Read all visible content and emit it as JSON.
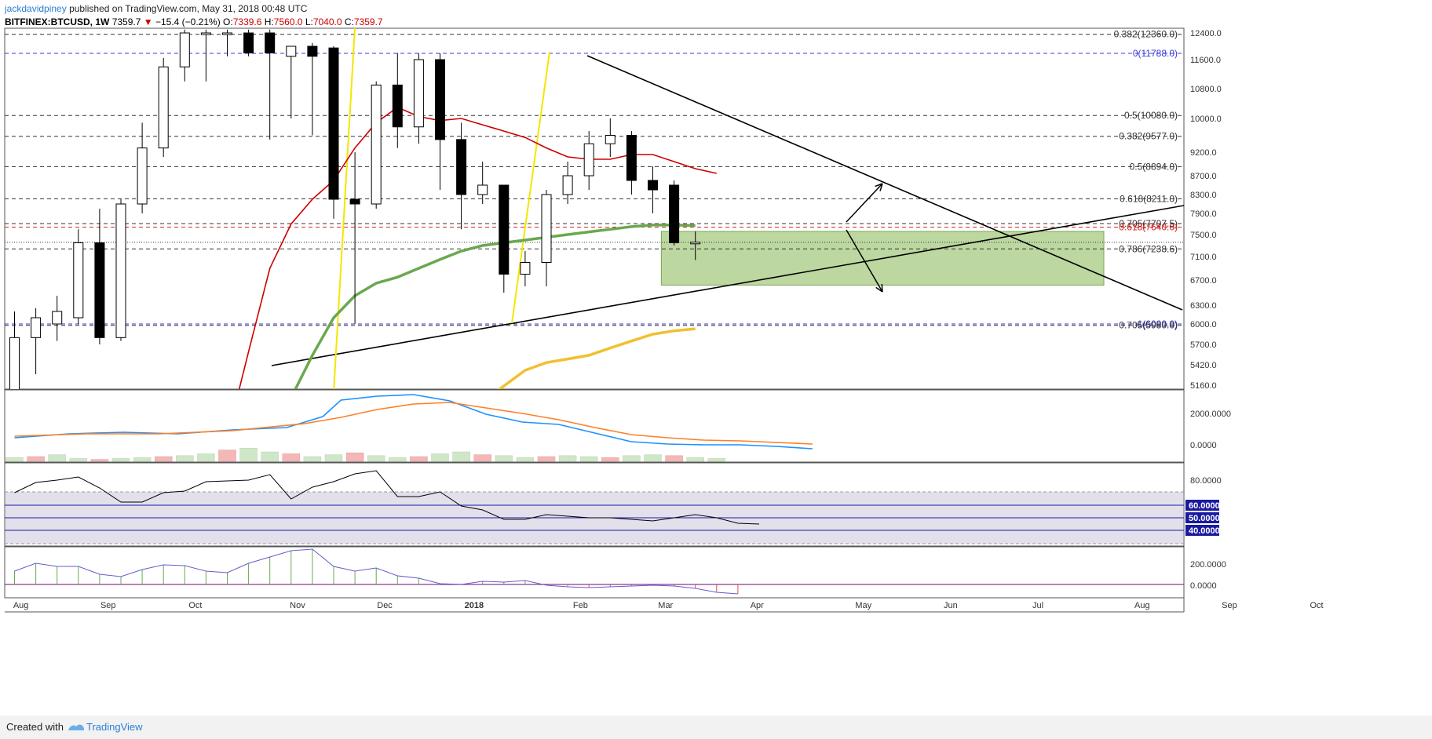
{
  "header": {
    "author": "jackdavidpiney",
    "published_text": "published on TradingView.com, May 31, 2018 00:48 UTC",
    "symbol": "BITFINEX:BTCUSD, 1W",
    "last_price": "7359.7",
    "change_arrow": "▼",
    "change": "−15.4 (−0.21%)",
    "open_label": "O:",
    "open": "7339.6",
    "high_label": "H:",
    "high": "7560.0",
    "low_label": "L:",
    "low": "7040.0",
    "close_label": "C:",
    "close": "7359.7"
  },
  "footer": {
    "created_with": "Created with",
    "brand": "TradingView"
  },
  "chart_data": {
    "type": "candlestick",
    "symbol": "BITFINEX:BTCUSD",
    "interval": "1W",
    "price_axis_ticks": [
      12400,
      11600,
      10800,
      10000,
      9200,
      8700,
      8300,
      7900,
      7500,
      7100,
      6700,
      6300,
      6000,
      5700,
      5420,
      5160
    ],
    "price_axis_labels": [
      "12400.0",
      "11600.0",
      "10800.0",
      "10000.0",
      "9200.0",
      "8700.0",
      "8300.0",
      "7900.0",
      "7500.0",
      "7100.0",
      "6700.0",
      "6300.0",
      "6000.0",
      "5700.0",
      "5420.0",
      "5160.0"
    ],
    "time_axis_labels": [
      "Aug",
      "Sep",
      "Oct",
      "Nov",
      "Dec",
      "2018",
      "Feb",
      "Mar",
      "Apr",
      "May",
      "Jun",
      "Jul",
      "Aug",
      "Sep",
      "Oct"
    ],
    "time_axis_index": [
      0.3,
      4.4,
      8.5,
      13.3,
      17.4,
      21.6,
      26.6,
      30.6,
      34.9,
      39.9,
      44.0,
      48.1,
      53.0,
      57.1,
      61.2
    ],
    "candles": [
      {
        "o": 5000,
        "h": 6200,
        "l": 4800,
        "c": 5800
      },
      {
        "o": 5800,
        "h": 6250,
        "l": 5300,
        "c": 6100
      },
      {
        "o": 6000,
        "h": 6450,
        "l": 5750,
        "c": 6200
      },
      {
        "o": 6100,
        "h": 7600,
        "l": 6000,
        "c": 7350
      },
      {
        "o": 7350,
        "h": 8000,
        "l": 5700,
        "c": 5800
      },
      {
        "o": 5800,
        "h": 8200,
        "l": 5750,
        "c": 8100
      },
      {
        "o": 8100,
        "h": 9900,
        "l": 7900,
        "c": 9300
      },
      {
        "o": 9300,
        "h": 11650,
        "l": 9100,
        "c": 11400
      },
      {
        "o": 11400,
        "h": 12500,
        "l": 11000,
        "c": 12400
      },
      {
        "o": 12400,
        "h": 12500,
        "l": 11000,
        "c": 12400
      },
      {
        "o": 12400,
        "h": 12500,
        "l": 11700,
        "c": 12400
      },
      {
        "o": 12400,
        "h": 12500,
        "l": 11700,
        "c": 11800
      },
      {
        "o": 12400,
        "h": 12500,
        "l": 9500,
        "c": 11800
      },
      {
        "o": 11700,
        "h": 12000,
        "l": 10000,
        "c": 12000
      },
      {
        "o": 12000,
        "h": 12100,
        "l": 9600,
        "c": 11700
      },
      {
        "o": 11950,
        "h": 12000,
        "l": 7800,
        "c": 8200
      },
      {
        "o": 8200,
        "h": 9200,
        "l": 6000,
        "c": 8100
      },
      {
        "o": 8100,
        "h": 11000,
        "l": 8000,
        "c": 10900
      },
      {
        "o": 10900,
        "h": 11800,
        "l": 9300,
        "c": 9800
      },
      {
        "o": 9800,
        "h": 11790,
        "l": 9400,
        "c": 11600
      },
      {
        "o": 11600,
        "h": 11790,
        "l": 8400,
        "c": 9500
      },
      {
        "o": 9500,
        "h": 9900,
        "l": 7600,
        "c": 8300
      },
      {
        "o": 8300,
        "h": 9000,
        "l": 8100,
        "c": 8500
      },
      {
        "o": 8500,
        "h": 8500,
        "l": 6500,
        "c": 6800
      },
      {
        "o": 6800,
        "h": 7200,
        "l": 6600,
        "c": 7000
      },
      {
        "o": 7000,
        "h": 8400,
        "l": 6600,
        "c": 8300
      },
      {
        "o": 8300,
        "h": 9000,
        "l": 8100,
        "c": 8700
      },
      {
        "o": 8700,
        "h": 9700,
        "l": 8400,
        "c": 9400
      },
      {
        "o": 9400,
        "h": 10000,
        "l": 9100,
        "c": 9600
      },
      {
        "o": 9600,
        "h": 9700,
        "l": 8300,
        "c": 8600
      },
      {
        "o": 8600,
        "h": 8900,
        "l": 7900,
        "c": 8400
      },
      {
        "o": 8500,
        "h": 8600,
        "l": 7300,
        "c": 7350
      },
      {
        "o": 7340,
        "h": 7560,
        "l": 7040,
        "c": 7360
      }
    ],
    "price_lines": [
      {
        "label": "0.382(12360.0)",
        "price": 12360,
        "color": "#333333"
      },
      {
        "label": "0(11788.0)",
        "price": 11788,
        "color": "#3a3ad8"
      },
      {
        "label": "0.5(10080.0)",
        "price": 10080,
        "color": "#333333"
      },
      {
        "label": "0.382(9577.0)",
        "price": 9577,
        "color": "#333333"
      },
      {
        "label": "0.5(8894.0)",
        "price": 8894,
        "color": "#333333"
      },
      {
        "label": "0.618(8211.0)",
        "price": 8211,
        "color": "#333333"
      },
      {
        "label": "0.705(7707.5)",
        "price": 7707.5,
        "color": "#333333"
      },
      {
        "label": "0.618(7640.0)",
        "price": 7640,
        "color": "#d82020"
      },
      {
        "label": "0.786(7238.6)",
        "price": 7238.6,
        "color": "#333333"
      },
      {
        "label": "1(6000.0)",
        "price": 6000,
        "color": "#3a3ad8"
      },
      {
        "label": "0.705(5980.0)",
        "price": 5980,
        "color": "#333333"
      }
    ],
    "ma_red": [
      [
        10,
        4500
      ],
      [
        11,
        5600
      ],
      [
        12,
        6900
      ],
      [
        13,
        7700
      ],
      [
        14,
        8200
      ],
      [
        15,
        8600
      ],
      [
        16,
        9300
      ],
      [
        17,
        9900
      ],
      [
        18,
        10300
      ],
      [
        19,
        10050
      ],
      [
        20,
        9950
      ],
      [
        21,
        10000
      ],
      [
        22,
        9850
      ],
      [
        23,
        9700
      ],
      [
        24,
        9550
      ],
      [
        25,
        9300
      ],
      [
        26,
        9100
      ],
      [
        27,
        9050
      ],
      [
        28,
        9050
      ],
      [
        29,
        9150
      ],
      [
        30,
        9150
      ],
      [
        31,
        9000
      ],
      [
        32,
        8850
      ],
      [
        33,
        8750
      ]
    ],
    "ma_green": [
      [
        13,
        5000
      ],
      [
        14,
        5550
      ],
      [
        15,
        6100
      ],
      [
        16,
        6450
      ],
      [
        17,
        6650
      ],
      [
        18,
        6750
      ],
      [
        19,
        6900
      ],
      [
        20,
        7050
      ],
      [
        21,
        7200
      ],
      [
        22,
        7300
      ],
      [
        23,
        7350
      ],
      [
        24,
        7400
      ],
      [
        25,
        7450
      ],
      [
        26,
        7500
      ],
      [
        27,
        7550
      ],
      [
        28,
        7600
      ],
      [
        29,
        7650
      ],
      [
        30,
        7680
      ],
      [
        31,
        7680
      ],
      [
        32,
        7670
      ]
    ],
    "ma_gold": [
      [
        22,
        4950
      ],
      [
        23,
        5150
      ],
      [
        24,
        5350
      ],
      [
        25,
        5450
      ],
      [
        26,
        5500
      ],
      [
        27,
        5550
      ],
      [
        28,
        5650
      ],
      [
        29,
        5750
      ],
      [
        30,
        5850
      ],
      [
        31,
        5900
      ],
      [
        32,
        5930
      ]
    ],
    "macd_ticks": [
      "2000.0000",
      "0.0000"
    ],
    "rsi_ticks": [
      "80.0000"
    ],
    "rsi_levels": [
      "60.0000",
      "50.0000",
      "40.0000"
    ],
    "cci_ticks": [
      "200.0000",
      "0.0000"
    ]
  }
}
